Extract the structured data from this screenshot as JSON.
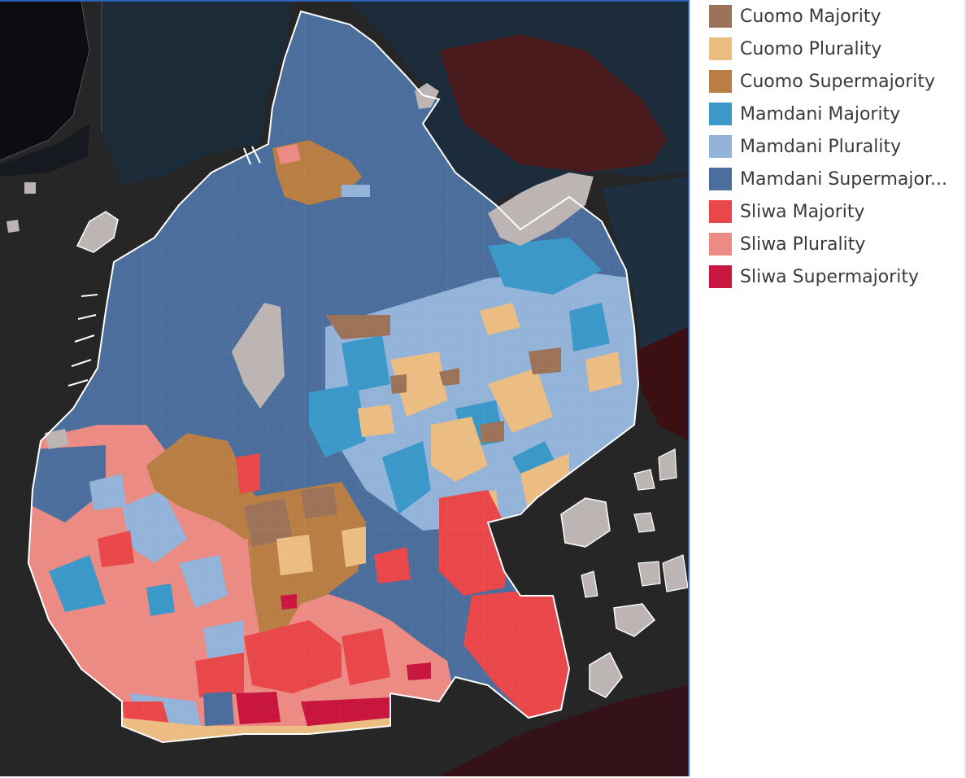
{
  "legend": {
    "items": [
      {
        "label": "Cuomo Majority",
        "color": "#9c7358"
      },
      {
        "label": "Cuomo Plurality",
        "color": "#ecbd82"
      },
      {
        "label": "Cuomo Supermajority",
        "color": "#b97e44"
      },
      {
        "label": "Mamdani Majority",
        "color": "#3b98c8"
      },
      {
        "label": "Mamdani Plurality",
        "color": "#93b3d9"
      },
      {
        "label": "Mamdani Supermajor...",
        "color": "#4b6e9c"
      },
      {
        "label": "Sliwa Majority",
        "color": "#e9474a"
      },
      {
        "label": "Sliwa Plurality",
        "color": "#ec8a84"
      },
      {
        "label": "Sliwa Supermajority",
        "color": "#c9163e"
      }
    ]
  },
  "map": {
    "colors": {
      "water": "#262626",
      "park": "#bdb5b3",
      "manhattan": "#0b0d12",
      "queens_dark": "#1b2b38",
      "queens_red": "#4a1b1c",
      "border": "#ffffff",
      "frame": "#2a62b5"
    }
  }
}
